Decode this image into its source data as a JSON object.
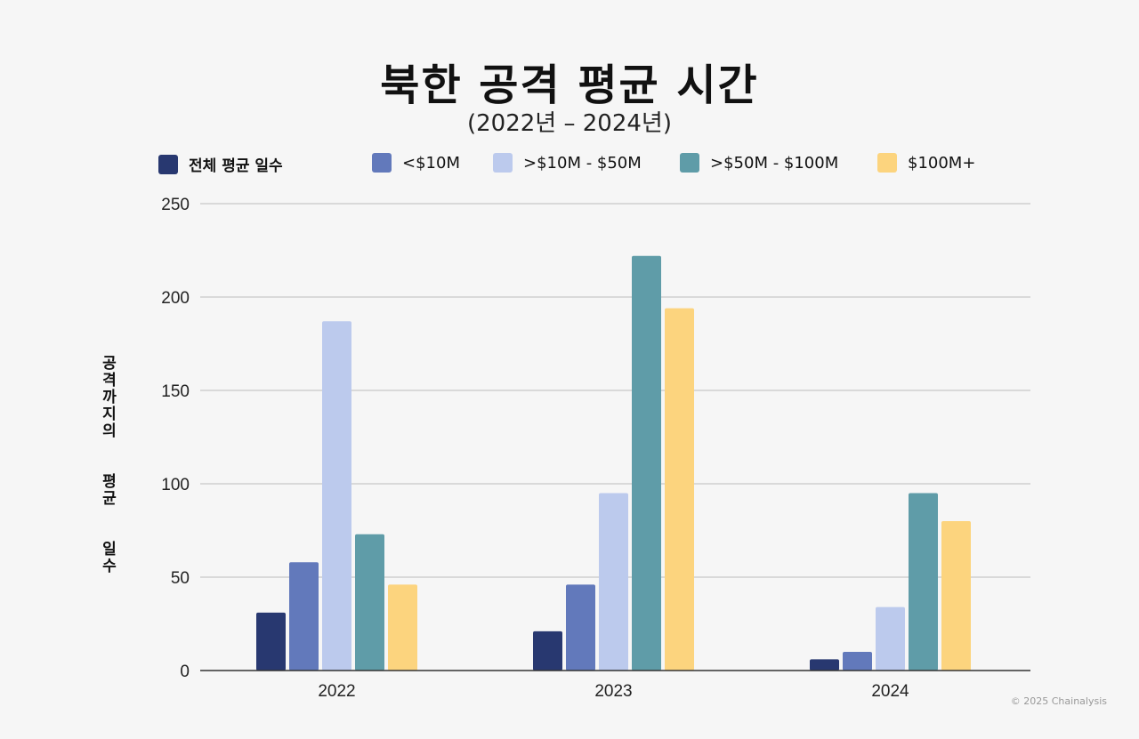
{
  "chart_data": {
    "type": "bar",
    "title": "북한 공격 평균 시간",
    "subtitle": "(2022년 – 2024년)",
    "xlabel": "",
    "ylabel": "공격까지의 평균 일수",
    "ylim": [
      0,
      250
    ],
    "yticks": [
      0,
      50,
      100,
      150,
      200,
      250
    ],
    "grid": true,
    "legend_position": "top",
    "categories": [
      "2022",
      "2023",
      "2024"
    ],
    "series": [
      {
        "name": "전체 평균 일수",
        "color": "#283870",
        "values": [
          31,
          21,
          6
        ]
      },
      {
        "name": "<$10M",
        "color": "#6279bb",
        "values": [
          58,
          46,
          10
        ]
      },
      {
        "name": ">$10M - $50M",
        "color": "#bccaed",
        "values": [
          187,
          95,
          34
        ]
      },
      {
        "name": ">$50M - $100M",
        "color": "#5f9ca8",
        "values": [
          73,
          222,
          95
        ]
      },
      {
        "name": "$100M+",
        "color": "#fcd47e",
        "values": [
          46,
          194,
          80
        ]
      }
    ]
  },
  "footer": {
    "copyright": "© 2025 Chainalysis"
  }
}
